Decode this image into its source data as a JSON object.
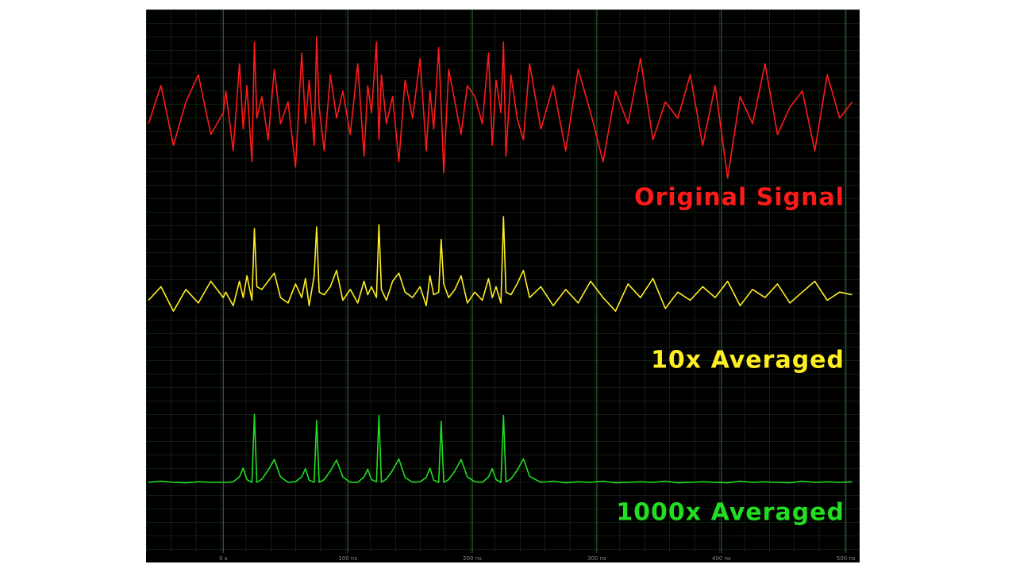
{
  "chart_data": {
    "type": "line",
    "x": [
      -60,
      -50,
      -40,
      -30,
      -20,
      -10,
      0,
      2,
      8,
      13,
      16,
      19,
      23,
      25,
      27,
      31,
      36,
      41,
      46,
      52,
      58,
      63,
      66,
      69,
      73,
      75,
      77,
      81,
      86,
      91,
      96,
      102,
      108,
      113,
      116,
      119,
      123,
      125,
      127,
      131,
      136,
      141,
      146,
      152,
      158,
      163,
      166,
      169,
      173,
      175,
      177,
      181,
      186,
      191,
      196,
      202,
      208,
      213,
      216,
      219,
      223,
      225,
      227,
      231,
      236,
      241,
      246,
      255,
      265,
      275,
      285,
      295,
      305,
      315,
      325,
      335,
      345,
      355,
      365,
      375,
      385,
      395,
      405,
      415,
      425,
      435,
      445,
      455,
      465,
      475,
      485,
      495,
      505
    ],
    "series": [
      {
        "name": "Original Signal",
        "color": "#ff1a1a",
        "values": [
          79,
          86,
          75,
          83,
          88,
          77,
          81,
          85,
          74,
          90,
          78,
          86,
          72,
          94,
          80,
          84,
          76,
          89,
          79,
          83,
          71,
          92,
          79,
          87,
          75,
          95,
          82,
          74,
          88,
          80,
          85,
          77,
          90,
          73,
          86,
          81,
          94,
          76,
          88,
          79,
          84,
          72,
          87,
          80,
          91,
          74,
          85,
          78,
          93,
          82,
          70,
          89,
          83,
          77,
          86,
          84,
          79,
          92,
          75,
          87,
          81,
          94,
          73,
          88,
          80,
          76,
          90,
          78,
          86,
          74,
          89,
          81,
          72,
          85,
          79,
          91,
          76,
          83,
          80,
          88,
          75,
          86,
          69,
          84,
          79,
          90,
          77,
          82,
          85,
          74,
          88,
          80,
          83
        ]
      },
      {
        "name": "10x Averaged",
        "color": "#ffee22",
        "values": [
          46.5,
          49,
          44.5,
          48.5,
          46,
          50,
          47,
          48,
          45.5,
          50,
          47,
          51,
          46.5,
          59.7,
          49,
          48.5,
          50,
          51.5,
          47,
          46,
          49.5,
          47,
          50.5,
          45.5,
          51,
          60,
          48,
          47.5,
          49,
          52,
          46.5,
          48.5,
          46,
          50,
          47.5,
          49,
          47,
          60.4,
          48.5,
          46.5,
          50,
          51.5,
          48,
          47,
          49,
          45.5,
          51,
          47.5,
          48,
          57.7,
          49.5,
          47,
          48.5,
          51,
          46,
          48,
          46.5,
          50.5,
          47,
          49,
          46,
          61.9,
          48,
          47.5,
          49.5,
          52,
          47,
          49,
          45.5,
          48.5,
          46,
          50,
          47,
          44.5,
          49.5,
          47,
          50.5,
          45,
          48,
          46.5,
          49,
          47,
          50,
          45.5,
          48.5,
          47,
          49.5,
          46,
          48,
          50,
          46.5,
          48,
          47.5
        ]
      },
      {
        "name": "1000x Averaged",
        "color": "#22dd22",
        "values": [
          13,
          13.2,
          13,
          12.9,
          13.1,
          13,
          13,
          13,
          13.1,
          14,
          15.6,
          13.5,
          13,
          25.5,
          13,
          13.6,
          15.2,
          17.2,
          14,
          13,
          13.1,
          14,
          15.5,
          13.4,
          13,
          24.4,
          13,
          13.5,
          15.1,
          17.1,
          14,
          13,
          13,
          14,
          15.4,
          13.5,
          13.1,
          25.3,
          13,
          13.6,
          15.2,
          17.3,
          13.9,
          13,
          13.1,
          13.9,
          15.6,
          13.4,
          13,
          24.2,
          13,
          13.5,
          15.1,
          17.2,
          14,
          13.1,
          13,
          14,
          15.5,
          13.5,
          13,
          25.3,
          13.1,
          13.6,
          15.2,
          17.3,
          14.1,
          13,
          13.2,
          12.9,
          13.1,
          13,
          13.2,
          12.9,
          13,
          13.1,
          13,
          13.2,
          12.9,
          13,
          13.1,
          13,
          12.9,
          13.2,
          13,
          13.1,
          13,
          12.9,
          13.2,
          13,
          13.1,
          13,
          13.1
        ]
      }
    ],
    "xlim": [
      -62,
      511
    ],
    "ylim": [
      0,
      100
    ],
    "xticks": [
      {
        "value": 0,
        "label": "0 s"
      },
      {
        "value": 100,
        "label": "100 ns"
      },
      {
        "value": 200,
        "label": "200 ns"
      },
      {
        "value": 300,
        "label": "300 ns"
      },
      {
        "value": 400,
        "label": "400 ns"
      },
      {
        "value": 500,
        "label": "500 ns"
      }
    ],
    "grid": true
  }
}
